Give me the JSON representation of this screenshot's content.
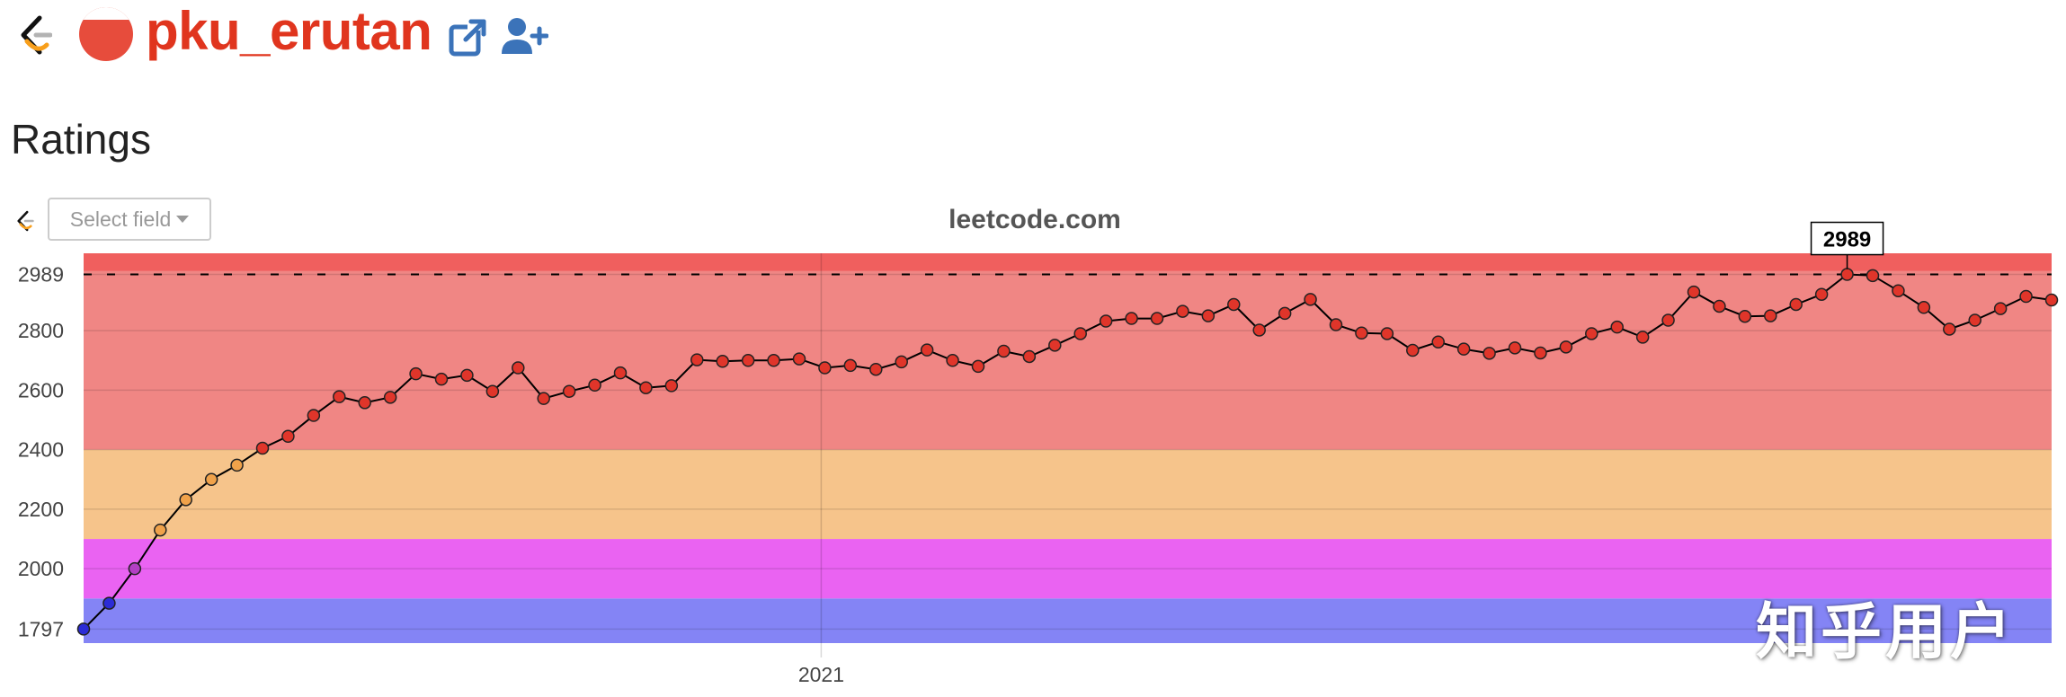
{
  "header": {
    "username": "pku_erutan",
    "status_icon": "half-filled-red-circle-icon",
    "back_icon": "leetcode-logo-icon",
    "external_link_icon": "external-link-icon",
    "follow_icon": "add-user-icon"
  },
  "section": {
    "title": "Ratings"
  },
  "toolbar": {
    "select_placeholder": "Select field"
  },
  "watermark": "知乎用户",
  "colors": {
    "band_red": "#f08684",
    "band_top": "#f05f5e",
    "band_orange": "#f6c48b",
    "band_violet": "#ea63f2",
    "band_blue": "#8484f5",
    "line": "#000000",
    "accent": "#e0351e"
  },
  "chart_data": {
    "type": "line",
    "title": "leetcode.com",
    "xlabel": "",
    "ylabel": "",
    "x_tick_labels": [
      "2021"
    ],
    "y_tick_labels": [
      "1797",
      "2000",
      "2200",
      "2400",
      "2600",
      "2800",
      "2989"
    ],
    "ylim": [
      1750,
      3060
    ],
    "grid": true,
    "max_marker": {
      "value": 2989,
      "label": "2989",
      "line_style": "dashed"
    },
    "background_bands": [
      {
        "from": 1750,
        "to": 1900,
        "color": "#8484f5"
      },
      {
        "from": 1900,
        "to": 2100,
        "color": "#ea63f2"
      },
      {
        "from": 2100,
        "to": 2400,
        "color": "#f6c48b"
      },
      {
        "from": 2400,
        "to": 3000,
        "color": "#f08684"
      },
      {
        "from": 3000,
        "to": 3060,
        "color": "#f05f5e"
      }
    ],
    "series": [
      {
        "values": [
          1797,
          1884,
          2000,
          2130,
          2232,
          2300,
          2348,
          2405,
          2445,
          2515,
          2578,
          2558,
          2576,
          2655,
          2637,
          2650,
          2596,
          2675,
          2572,
          2596,
          2617,
          2658,
          2608,
          2615,
          2702,
          2697,
          2700,
          2700,
          2705,
          2675,
          2683,
          2670,
          2695,
          2735,
          2700,
          2680,
          2731,
          2713,
          2751,
          2790,
          2832,
          2841,
          2841,
          2865,
          2850,
          2888,
          2802,
          2858,
          2905,
          2820,
          2792,
          2790,
          2734,
          2762,
          2738,
          2724,
          2742,
          2725,
          2745,
          2790,
          2812,
          2778,
          2835,
          2930,
          2882,
          2848,
          2850,
          2888,
          2922,
          2989,
          2985,
          2934,
          2878,
          2805,
          2835,
          2874,
          2915,
          2903
        ]
      }
    ]
  }
}
